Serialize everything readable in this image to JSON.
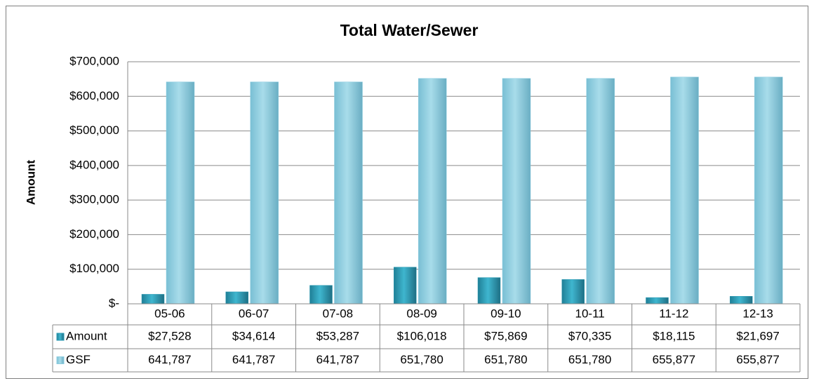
{
  "chart_data": {
    "type": "bar",
    "title": "Total Water/Sewer",
    "y_label": "Amount",
    "categories": [
      "05-06",
      "06-07",
      "07-08",
      "08-09",
      "09-10",
      "10-11",
      "11-12",
      "12-13"
    ],
    "series": [
      {
        "name": "Amount",
        "color": "#2b9ab3",
        "values": [
          27528,
          34614,
          53287,
          106018,
          75869,
          70335,
          18115,
          21697
        ],
        "value_labels": [
          "$27,528",
          "$34,614",
          "$53,287",
          "$106,018",
          "$75,869",
          "$70,335",
          "$18,115",
          "$21,697"
        ]
      },
      {
        "name": "GSF",
        "color": "#8dcde0",
        "values": [
          641787,
          641787,
          641787,
          651780,
          651780,
          651780,
          655877,
          655877
        ],
        "value_labels": [
          "641,787",
          "641,787",
          "641,787",
          "651,780",
          "651,780",
          "651,780",
          "655,877",
          "655,877"
        ]
      }
    ],
    "ylim": [
      0,
      700000
    ],
    "yticks": [
      {
        "value": 0,
        "label": "$-"
      },
      {
        "value": 100000,
        "label": "$100,000"
      },
      {
        "value": 200000,
        "label": "$200,000"
      },
      {
        "value": 300000,
        "label": "$300,000"
      },
      {
        "value": 400000,
        "label": "$400,000"
      },
      {
        "value": 500000,
        "label": "$500,000"
      },
      {
        "value": 600000,
        "label": "$600,000"
      },
      {
        "value": 700000,
        "label": "$700,000"
      }
    ],
    "grid": true
  }
}
